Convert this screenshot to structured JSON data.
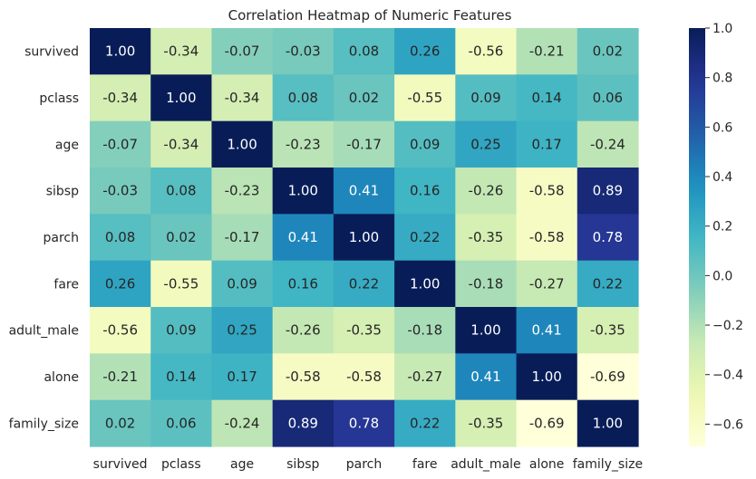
{
  "chart_data": {
    "type": "heatmap",
    "title": "Correlation Heatmap of Numeric Features",
    "xlabel": "",
    "ylabel": "",
    "row_labels": [
      "survived",
      "pclass",
      "age",
      "sibsp",
      "parch",
      "fare",
      "adult_male",
      "alone",
      "family_size"
    ],
    "col_labels": [
      "survived",
      "pclass",
      "age",
      "sibsp",
      "parch",
      "fare",
      "adult_male",
      "alone",
      "family_size"
    ],
    "values": [
      [
        1.0,
        -0.34,
        -0.07,
        -0.03,
        0.08,
        0.26,
        -0.56,
        -0.21,
        0.02
      ],
      [
        -0.34,
        1.0,
        -0.34,
        0.08,
        0.02,
        -0.55,
        0.09,
        0.14,
        0.06
      ],
      [
        -0.07,
        -0.34,
        1.0,
        -0.23,
        -0.17,
        0.09,
        0.25,
        0.17,
        -0.24
      ],
      [
        -0.03,
        0.08,
        -0.23,
        1.0,
        0.41,
        0.16,
        -0.26,
        -0.58,
        0.89
      ],
      [
        0.08,
        0.02,
        -0.17,
        0.41,
        1.0,
        0.22,
        -0.35,
        -0.58,
        0.78
      ],
      [
        0.26,
        -0.55,
        0.09,
        0.16,
        0.22,
        1.0,
        -0.18,
        -0.27,
        0.22
      ],
      [
        -0.56,
        0.09,
        0.25,
        -0.26,
        -0.35,
        -0.18,
        1.0,
        0.41,
        -0.35
      ],
      [
        -0.21,
        0.14,
        0.17,
        -0.58,
        -0.58,
        -0.27,
        0.41,
        1.0,
        -0.69
      ],
      [
        0.02,
        0.06,
        -0.24,
        0.89,
        0.78,
        0.22,
        -0.35,
        -0.69,
        1.0
      ]
    ],
    "value_format": "2 decimals",
    "colormap": "YlGnBu",
    "vmin": -0.69,
    "vmax": 1.0,
    "colorbar_ticks": [
      "1.0",
      "0.8",
      "0.6",
      "0.4",
      "0.2",
      "0.0",
      "−0.2",
      "−0.4",
      "−0.6"
    ],
    "colorbar_tick_values": [
      1.0,
      0.8,
      0.6,
      0.4,
      0.2,
      0.0,
      -0.2,
      -0.4,
      -0.6
    ],
    "grid": false,
    "legend": "colorbar-right"
  }
}
